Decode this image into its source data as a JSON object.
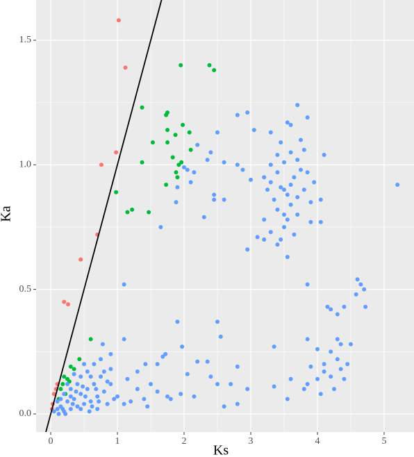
{
  "chart_data": {
    "type": "scatter",
    "x_label": "Ks",
    "y_label": "Ka",
    "xlim": [
      -0.219,
      5.448
    ],
    "ylim": [
      -0.0725,
      1.6616
    ],
    "xticks": [
      0,
      1,
      2,
      3,
      4,
      5
    ],
    "yticks": [
      {
        "value": 0,
        "label": "0.0"
      },
      {
        "value": 0.5,
        "label": "0.5"
      },
      {
        "value": 1,
        "label": "1.0"
      },
      {
        "value": 1.5,
        "label": "1.5"
      }
    ],
    "grid": true,
    "minor_grid": true,
    "background": "#ebebeb",
    "reference_line": {
      "slope": 1,
      "intercept": 0,
      "color": "#000000"
    },
    "series": [
      {
        "color": "#F8766D",
        "x": [
          1.02,
          1.12,
          0.98,
          0.76,
          0.7,
          0.45,
          0.2,
          0.26,
          0.05,
          0.08,
          0.03,
          0.1,
          0.02
        ],
        "values": [
          1.58,
          1.39,
          1.05,
          1.0,
          0.72,
          0.62,
          0.45,
          0.44,
          0.08,
          0.1,
          0.04,
          0.12,
          0.02
        ]
      },
      {
        "color": "#00BA38",
        "x": [
          1.95,
          2.38,
          2.45,
          1.37,
          1.73,
          1.75,
          1.98,
          1.75,
          2.08,
          1.87,
          1.53,
          1.75,
          2.1,
          1.37,
          1.92,
          1.96,
          1.83,
          1.88,
          1.9,
          0.98,
          1.73,
          1.15,
          1.22,
          1.47,
          0.6,
          0.43,
          0.3,
          0.35,
          0.2,
          0.25,
          0.18,
          0.15,
          0.22,
          0.28,
          0.12
        ],
        "values": [
          1.4,
          1.4,
          1.38,
          1.23,
          1.2,
          1.21,
          1.16,
          1.14,
          1.13,
          1.12,
          1.09,
          1.09,
          1.06,
          1.01,
          1.0,
          1.01,
          1.03,
          0.97,
          0.95,
          0.89,
          0.92,
          0.81,
          0.82,
          0.81,
          0.3,
          0.22,
          0.19,
          0.18,
          0.15,
          0.14,
          0.12,
          0.1,
          0.08,
          0.13,
          0.06
        ]
      },
      {
        "color": "#619CFF",
        "x": [
          3.7,
          2.95,
          2.8,
          3.05,
          3.55,
          3.6,
          3.85,
          2.5,
          3.3,
          3.45,
          3.75,
          4.1,
          2.4,
          2.2,
          2.35,
          2.0,
          2.05,
          2.15,
          2.6,
          2.8,
          2.88,
          3.0,
          3.2,
          3.3,
          3.4,
          3.45,
          3.5,
          3.55,
          3.6,
          3.65,
          3.7,
          3.75,
          3.8,
          3.9,
          3.25,
          3.35,
          3.4,
          3.5,
          3.55,
          3.6,
          3.7,
          3.65,
          3.5,
          3.45,
          3.3,
          3.4,
          3.2,
          3.1,
          3.55,
          2.95,
          3.2,
          3.9,
          4.05,
          4.05,
          3.95,
          3.6,
          3.4,
          3.5,
          3.7,
          3.8,
          3.85,
          3.3,
          2.45,
          2.45,
          2.6,
          1.88,
          1.9,
          2.1,
          2.3,
          1.65,
          1.1,
          3.85,
          5.2,
          4.6,
          4.65,
          4.7,
          4.58,
          4.72,
          4.4,
          4.3,
          4.15,
          4.2,
          3.85,
          4.0,
          4.3,
          4.35,
          4.5,
          4.2,
          4.3,
          4.45,
          4.1,
          3.9,
          4.1,
          4.2,
          4.35,
          4.4,
          4.0,
          3.85,
          3.6,
          3.8,
          4.25,
          4.05,
          3.55,
          3.35,
          3.35,
          2.5,
          1.9,
          2.55,
          2.2,
          2.35,
          2.4,
          2.5,
          2.7,
          2.8,
          2.95,
          2.6,
          2.8,
          1.97,
          1.72,
          1.68,
          1.6,
          1.42,
          1.3,
          1.15,
          1.3,
          1.5,
          1.6,
          1.75,
          1.8,
          1.95,
          1.4,
          1.2,
          1.1,
          1.0,
          0.9,
          1.1,
          2.05,
          2.15,
          1.45,
          0.05,
          0.1,
          0.15,
          0.2,
          0.25,
          0.3,
          0.35,
          0.4,
          0.45,
          0.5,
          0.55,
          0.6,
          0.65,
          0.7,
          0.75,
          0.8,
          0.85,
          0.9,
          0.95,
          0.65,
          0.75,
          0.55,
          0.45,
          0.5,
          0.4,
          0.3,
          0.25,
          0.2,
          0.15,
          0.1,
          0.35,
          0.6,
          0.7,
          0.58,
          0.62,
          0.8,
          0.85,
          0.45,
          0.3,
          0.12,
          0.22,
          0.38,
          0.48,
          0.52,
          0.68,
          0.9,
          0.78,
          0.72,
          0.33,
          0.18
        ],
        "values": [
          1.24,
          1.21,
          1.2,
          1.14,
          1.17,
          1.16,
          1.19,
          1.13,
          1.13,
          1.09,
          1.1,
          1.04,
          1.05,
          1.08,
          1.02,
          0.99,
          0.98,
          0.97,
          1.01,
          1.0,
          0.98,
          0.94,
          0.95,
          0.93,
          0.97,
          0.91,
          0.9,
          0.88,
          0.92,
          0.95,
          0.87,
          0.98,
          0.9,
          0.85,
          0.9,
          0.86,
          0.82,
          0.8,
          0.78,
          0.84,
          0.8,
          0.72,
          0.75,
          0.7,
          0.73,
          0.68,
          0.7,
          0.71,
          0.63,
          0.66,
          0.78,
          0.77,
          0.77,
          0.86,
          0.93,
          1.05,
          1.04,
          1.01,
          1.02,
          1.06,
          0.97,
          1.0,
          0.88,
          0.86,
          0.86,
          0.85,
          0.91,
          0.93,
          0.79,
          0.75,
          0.52,
          0.52,
          0.92,
          0.54,
          0.52,
          0.5,
          0.48,
          0.43,
          0.43,
          0.4,
          0.43,
          0.42,
          0.3,
          0.26,
          0.3,
          0.28,
          0.28,
          0.25,
          0.22,
          0.2,
          0.2,
          0.19,
          0.17,
          0.15,
          0.18,
          0.14,
          0.14,
          0.12,
          0.14,
          0.1,
          0.1,
          0.08,
          0.06,
          0.27,
          0.11,
          0.37,
          0.37,
          0.31,
          0.21,
          0.21,
          0.15,
          0.12,
          0.12,
          0.19,
          0.1,
          0.03,
          0.04,
          0.27,
          0.24,
          0.23,
          0.2,
          0.2,
          0.17,
          0.14,
          0.1,
          0.12,
          0.09,
          0.07,
          0.06,
          0.08,
          0.06,
          0.05,
          0.04,
          0.07,
          0.12,
          0.3,
          0.16,
          0.07,
          0.03,
          0.01,
          0.02,
          0.03,
          0.01,
          0.05,
          0.02,
          0.06,
          0.03,
          0.08,
          0.04,
          0.1,
          0.05,
          0.12,
          0.07,
          0.15,
          0.09,
          0.13,
          0.18,
          0.06,
          0.2,
          0.22,
          0.17,
          0.15,
          0.2,
          0.12,
          0.1,
          0.12,
          0.08,
          0.06,
          0.05,
          0.16,
          0.15,
          0.02,
          0.01,
          0.03,
          0.17,
          0.04,
          0.02,
          0.07,
          0.0,
          0.0,
          0.09,
          0.11,
          0.07,
          0.1,
          0.24,
          0.28,
          0.05,
          0.04,
          0.02
        ]
      }
    ]
  }
}
